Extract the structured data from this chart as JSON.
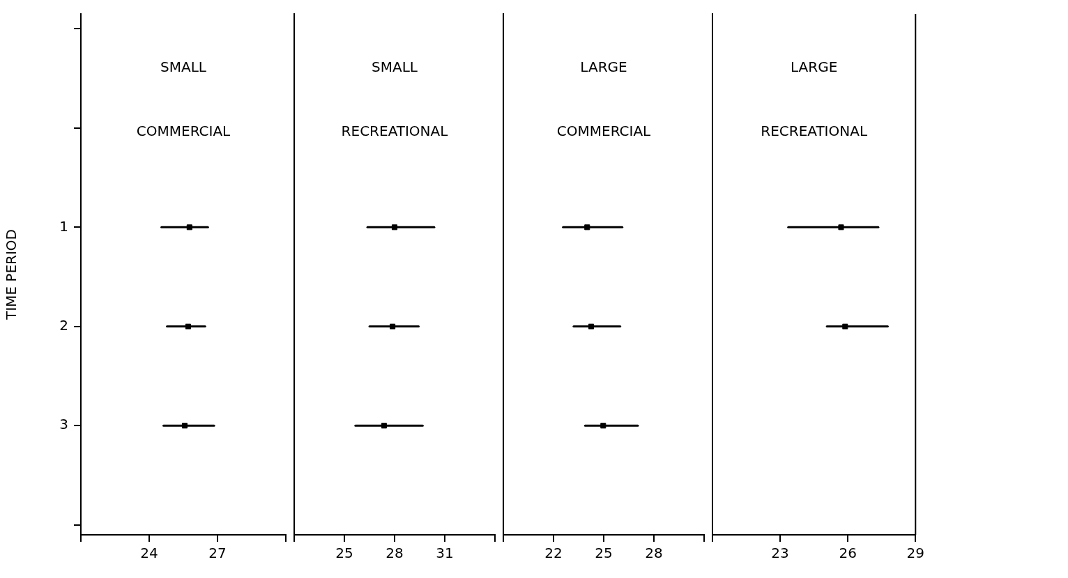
{
  "chart_data": [
    {
      "type": "scatter",
      "title": "SMALL\nCOMMERCIAL",
      "ylabel": "TIME PERIOD",
      "marker": "square",
      "grid": false,
      "legend": false,
      "xlim": [
        21,
        30
      ],
      "xticks": [
        {
          "value": 21,
          "label": null
        },
        24,
        27,
        {
          "value": 30,
          "label": null
        }
      ],
      "ylim": [
        4.1,
        -1.15
      ],
      "yticks": [
        {
          "value": -1,
          "label": null
        },
        {
          "value": 0,
          "label": null
        },
        1,
        2,
        3,
        {
          "value": 4,
          "label": null
        }
      ],
      "series": [
        {
          "color": "#000000",
          "x": [
            25.77,
            25.71,
            25.56
          ],
          "values": [
            1,
            2,
            3
          ],
          "xerrors": [
            [
              24.54,
              26.58
            ],
            [
              24.78,
              26.46
            ],
            [
              24.63,
              26.85
            ]
          ]
        }
      ]
    },
    {
      "type": "scatter",
      "title": "SMALL\nRECREATIONAL",
      "marker": "square",
      "grid": false,
      "legend": false,
      "tick_labels": "x",
      "xlim": [
        22,
        34
      ],
      "xticks": [
        {
          "value": 22,
          "label": null
        },
        25,
        28,
        31,
        {
          "value": 34,
          "label": null
        }
      ],
      "ylim": [
        4.1,
        -1.15
      ],
      "series": [
        {
          "color": "#000000",
          "x": [
            28.0,
            27.88,
            27.37
          ],
          "values": [
            1,
            2,
            3
          ],
          "xerrors": [
            [
              26.38,
              30.37
            ],
            [
              26.5,
              29.44
            ],
            [
              25.66,
              29.68
            ]
          ]
        }
      ]
    },
    {
      "type": "scatter",
      "title": "LARGE\nCOMMERCIAL",
      "marker": "square",
      "grid": false,
      "legend": false,
      "tick_labels": "x",
      "xlim": [
        19,
        31
      ],
      "xticks": [
        {
          "value": 19,
          "label": null
        },
        22,
        25,
        28,
        {
          "value": 31,
          "label": null
        }
      ],
      "ylim": [
        4.1,
        -1.15
      ],
      "series": [
        {
          "color": "#000000",
          "x": [
            24.01,
            24.25,
            24.97
          ],
          "values": [
            1,
            2,
            3
          ],
          "xerrors": [
            [
              22.57,
              26.11
            ],
            [
              23.2,
              25.99
            ],
            [
              23.89,
              27.04
            ]
          ]
        }
      ]
    },
    {
      "type": "scatter",
      "title": "LARGE\nRECREATIONAL",
      "marker": "square",
      "grid": false,
      "legend": false,
      "tick_labels": "x",
      "xlim": [
        20,
        29
      ],
      "xticks": [
        {
          "value": 20,
          "label": null
        },
        23,
        26,
        29
      ],
      "ylim": [
        4.1,
        -1.15
      ],
      "series": [
        {
          "color": "#000000",
          "x": [
            25.7,
            25.88
          ],
          "values": [
            1,
            2
          ],
          "xerrors": [
            [
              23.36,
              27.35
            ],
            [
              25.07,
              27.77
            ]
          ]
        }
      ]
    }
  ]
}
